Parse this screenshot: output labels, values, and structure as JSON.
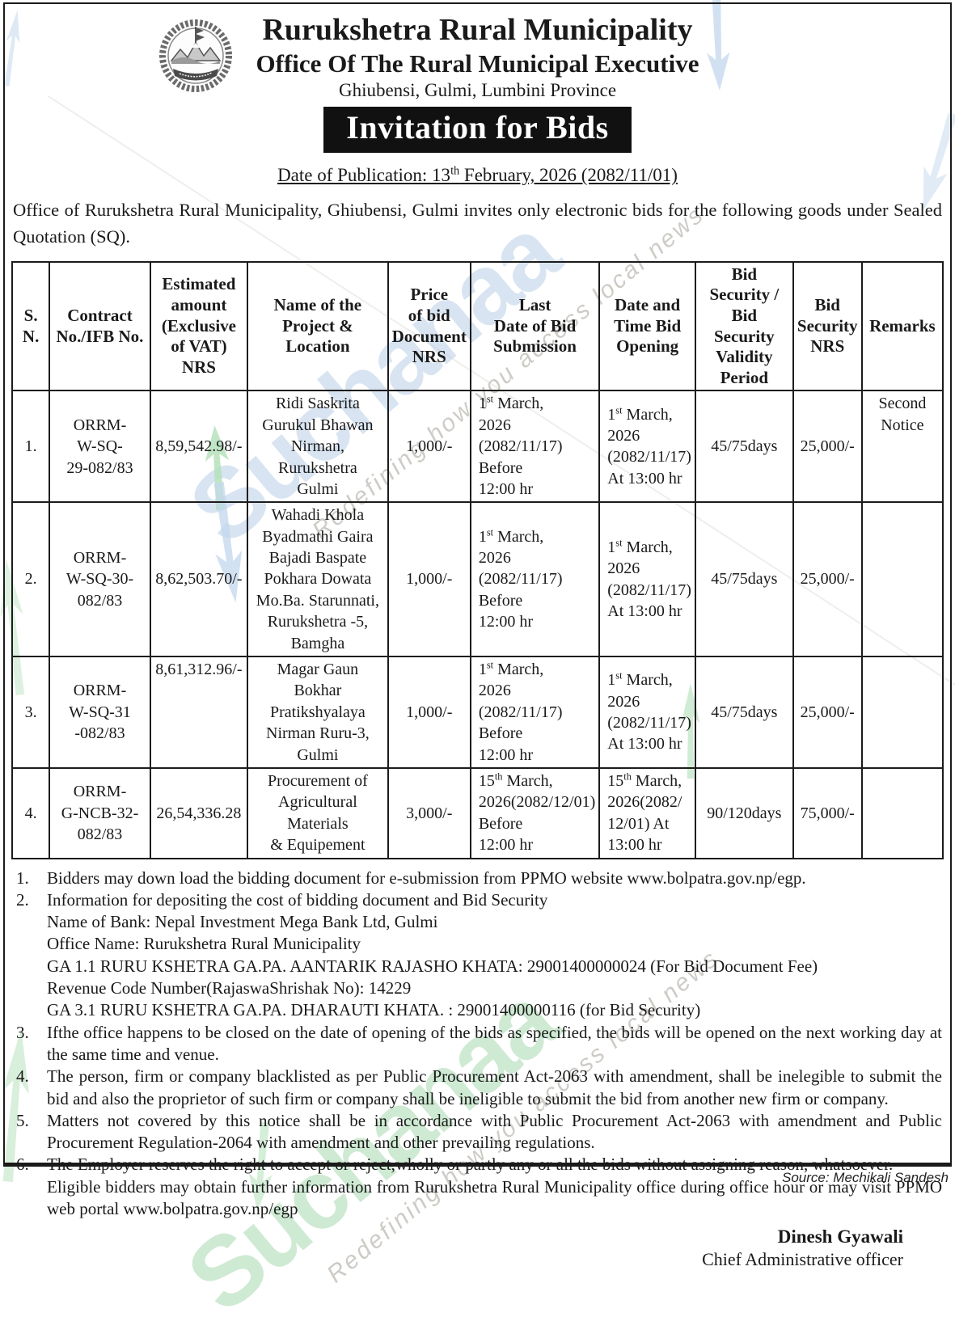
{
  "header": {
    "municipality": "Rurukshetra Rural Municipality",
    "office": "Office Of The Rural Municipal Executive",
    "address": "Ghiubensi, Gulmi, Lumbini Province",
    "banner": "Invitation for Bids",
    "publication": "Date of Publication: 13^{th} February, 2026 (2082/11/01)"
  },
  "intro": "Office of Rurukshetra Rural Municipality, Ghiubensi, Gulmi invites only electronic bids for the following goods under Sealed Quotation (SQ).",
  "table": {
    "headers": [
      "S.\nN.",
      "Contract\nNo./IFB No.",
      "Estimated\namount\n(Exclusive\nof VAT)\nNRS",
      "Name of the\nProject &\nLocation",
      "Price\nof bid\nDocument\nNRS",
      "Last\nDate of Bid\nSubmission",
      "Date and\nTime Bid\nOpening",
      "Bid\nSecurity /\nBid Security\nValidity\nPeriod",
      "Bid\nSecurity\nNRS",
      "Remarks"
    ],
    "rows": [
      [
        "1.",
        "ORRM-\nW-SQ-\n29-082/83",
        "8,59,542.98/-",
        "Ridi Saskrita\nGurukul Bhawan\nNirman, Rurukshetra\nGulmi",
        "1,000/-",
        "1^{st} March,\n2026 (2082/11/17)\nBefore\n12:00 hr",
        "1^{st} March,\n2026\n(2082/11/17)\n At 13:00 hr",
        "45/75days",
        "25,000/-",
        {
          "t": "Second\nNotice",
          "va": "top"
        }
      ],
      [
        "2.",
        "ORRM-\nW-SQ-30-\n082/83",
        "8,62,503.70/-",
        "Wahadi Khola\nByadmathi Gaira\nBajadi Baspate\nPokhara Dowata\nMo.Ba. Starunnati,\nRurukshetra -5,\nBamgha",
        "1,000/-",
        "1^{st} March,\n2026 (2082/11/17)\nBefore\n12:00 hr",
        "1^{st} March,\n2026\n(2082/11/17)\n At 13:00 hr",
        "45/75days",
        "25,000/-",
        ""
      ],
      [
        "3.",
        "ORRM-\nW-SQ-31\n-082/83",
        {
          "t": "8,61,312.96/-",
          "va": "top"
        },
        "Magar Gaun Bokhar\nPratikshyalaya\nNirman Ruru-3,\nGulmi",
        "1,000/-",
        "1^{st} March,\n2026 (2082/11/17)\nBefore\n12:00 hr",
        "1^{st} March,\n2026\n(2082/11/17)\nAt 13:00 hr",
        "45/75days",
        "25,000/-",
        ""
      ],
      [
        "4.",
        "ORRM-\nG-NCB-32-\n082/83",
        "26,54,336.28",
        "Procurement of\nAgricultural Materials\n& Equipement",
        "3,000/-",
        "15^{th} March,\n2026(2082/12/01)\nBefore\n12:00 hr",
        "15^{th} March,\n2026(2082/\n12/01)  At\n13:00 hr",
        "90/120days",
        "75,000/-",
        ""
      ]
    ]
  },
  "notes": [
    {
      "num": "1.",
      "lines": [
        "Bidders may down load the bidding document for e-submission from PPMO website www.bolpatra.gov.np/egp."
      ]
    },
    {
      "num": "2.",
      "lines": [
        "Information for depositing the cost of bidding document and Bid Security",
        "Name of Bank: Nepal Investment Mega Bank Ltd, Gulmi",
        "Office Name: Rurukshetra Rural Municipality",
        "GA 1.1 RURU KSHETRA GA.PA. AANTARIK RAJASHO KHATA: 29001400000024 (For Bid Document Fee)",
        "Revenue Code Number(RajaswaShrishak No): 14229",
        "GA 3.1 RURU KSHETRA GA.PA. DHARAUTI KHATA. : 29001400000116 (for Bid Security)"
      ]
    },
    {
      "num": "3.",
      "lines": [
        "Ifthe office happens to be closed on the date of opening of the bids as specified, the bids will be opened on the next working day at the same time and venue."
      ]
    },
    {
      "num": "4.",
      "lines": [
        "The person, firm or company blacklisted as per Public Procurement Act-2063 with amendment, shall be inelegible to submit the bid and also the proprietor of such firm or company shall be ineligible to submit the bid from another new firm or company."
      ]
    },
    {
      "num": "5.",
      "lines": [
        "Matters not covered by this notice shall be in accordance with Public Procurement Act-2063 with amendment and Public Procurement Regulation-2064 with amendment and other prevailing regulations."
      ]
    },
    {
      "num": "6.",
      "lines": [
        "The Employer reserves the right to accept or reject,wholly or partly any or all the bids without assigning reason, whatsoever.",
        "Eligible bidders may obtain further information from Rurukshetra Rural Municipality office during office hour or may visit PPMO web portal  www.bolpatra.gov.np/egp"
      ]
    }
  ],
  "signature": {
    "name": "Dinesh Gyawali",
    "title": "Chief Administrative officer"
  },
  "footer": {
    "source": "Source: Mechikali Sandesh"
  },
  "watermark": {
    "text": "Suchanaa",
    "tagline": "Redefining how you access local news"
  },
  "colors": {
    "ink": "#1a1a1a",
    "watermark_blue": "#b9cfe6",
    "watermark_green": "#a9d9b0"
  }
}
